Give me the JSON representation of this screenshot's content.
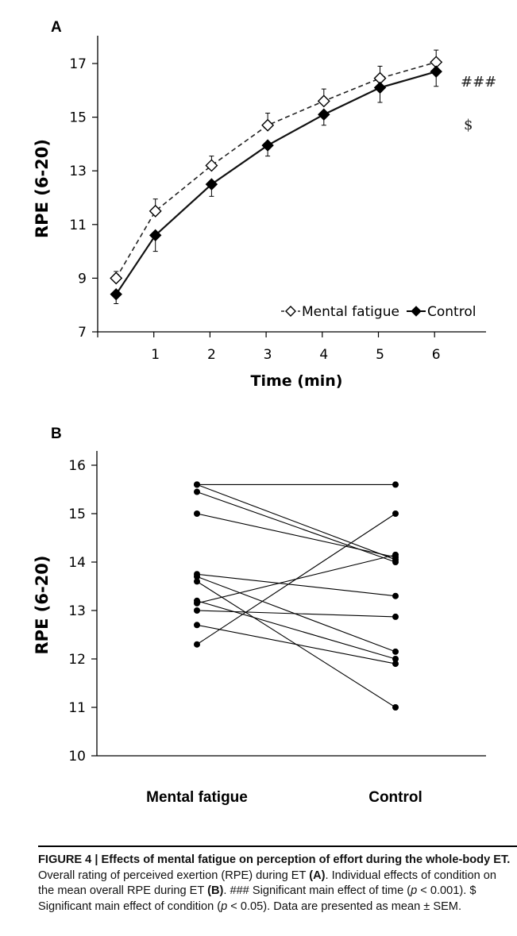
{
  "chart_data": [
    {
      "panel": "A",
      "type": "line",
      "xlabel": "Time (min)",
      "ylabel": "RPE (6-20)",
      "xlim": [
        0,
        7
      ],
      "ylim": [
        7,
        18
      ],
      "x_ticks": [
        1,
        2,
        3,
        4,
        5,
        6
      ],
      "y_ticks": [
        7,
        9,
        11,
        13,
        15,
        17
      ],
      "grid": false,
      "legend": "bottom-right",
      "annotations": [
        "###",
        "$"
      ],
      "x": [
        0.3,
        1,
        2,
        3,
        4,
        5,
        6
      ],
      "series": [
        {
          "name": "Mental fatigue",
          "style": "dashed",
          "marker": "open-diamond",
          "values": [
            9.0,
            11.5,
            13.2,
            14.7,
            15.6,
            16.45,
            17.05
          ],
          "sem": [
            0.25,
            0.45,
            0.35,
            0.45,
            0.45,
            0.45,
            0.45
          ]
        },
        {
          "name": "Control",
          "style": "solid",
          "marker": "filled-diamond",
          "values": [
            8.4,
            10.6,
            12.5,
            13.95,
            15.1,
            16.1,
            16.7
          ],
          "sem": [
            0.35,
            0.6,
            0.45,
            0.4,
            0.4,
            0.55,
            0.55
          ]
        }
      ]
    },
    {
      "panel": "B",
      "type": "scatter",
      "ylabel": "RPE (6-20)",
      "ylim": [
        10,
        16.5
      ],
      "y_ticks": [
        10,
        11,
        12,
        13,
        14,
        15,
        16
      ],
      "categories": [
        "Mental fatigue",
        "Control"
      ],
      "grid": false,
      "pairs": [
        [
          15.6,
          15.6
        ],
        [
          15.6,
          14.05
        ],
        [
          15.45,
          14.0
        ],
        [
          15.0,
          14.1
        ],
        [
          13.75,
          13.3
        ],
        [
          13.7,
          12.15
        ],
        [
          13.6,
          11.0
        ],
        [
          13.15,
          14.15
        ],
        [
          13.2,
          12.0
        ],
        [
          13.0,
          12.87
        ],
        [
          12.7,
          11.9
        ],
        [
          12.3,
          15.0
        ]
      ]
    }
  ],
  "caption": {
    "figure_label": "FIGURE 4 | Effects of mental fatigue on perception of effort during the whole-body ET.",
    "part1": " Overall rating of perceived exertion (RPE) during ET ",
    "ref_a": "(A)",
    "part2": ". Individual effects of condition on the mean overall RPE during ET ",
    "ref_b": "(B)",
    "part3": ". ### Significant main effect of time (",
    "p1": "p",
    "part4": " < 0.001). $ Significant main effect of condition (",
    "p2": "p",
    "part5": " < 0.05). Data are presented as mean ± SEM."
  }
}
